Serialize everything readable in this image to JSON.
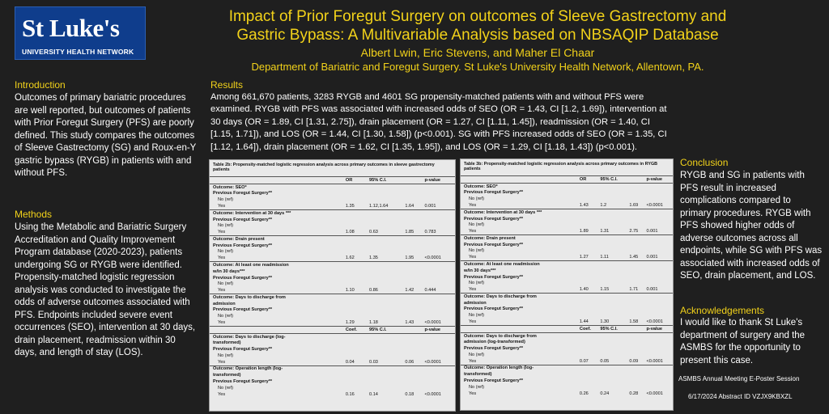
{
  "logo": {
    "main": "St Luke's",
    "sub": "UNIVERSITY HEALTH NETWORK"
  },
  "header": {
    "title_line1": "Impact of Prior Foregut Surgery on outcomes of Sleeve Gastrectomy and",
    "title_line2": "Gastric Bypass: A Multivariable Analysis based on NBSAQIP Database",
    "authors": "Albert Lwin, Eric Stevens, and Maher El Chaar",
    "department": "Department of Bariatric and Foregut Surgery. St Luke's University Health Network, Allentown, PA."
  },
  "introduction": {
    "heading": "Introduction",
    "text": "Outcomes of primary bariatric procedures are well reported, but outcomes of patients with Prior Foregut Surgery (PFS) are poorly defined. This study compares the outcomes of Sleeve Gastrectomy (SG) and Roux-en-Y gastric bypass (RYGB) in patients with and without PFS."
  },
  "methods": {
    "heading": "Methods",
    "text": "Using the Metabolic and Bariatric Surgery Accreditation and Quality Improvement Program database (2020-2023), patients undergoing SG or RYGB were identified. Propensity-matched logistic regression analysis was conducted to investigate the odds of adverse outcomes associated with PFS. Endpoints included severe event occurrences (SEO), intervention at 30 days, drain placement, readmission within 30 days, and length of stay (LOS)."
  },
  "results": {
    "heading": "Results",
    "text": "Among 661,670 patients, 3283 RYGB and 4601 SG propensity-matched patients with and without PFS were examined. RYGB with PFS was associated with increased odds of SEO (OR = 1.43, CI [1.2, 1.69]), intervention at 30 days (OR = 1.89, CI [1.31, 2.75]), drain placement (OR = 1.27, CI [1.11, 1.45]), readmission (OR = 1.40, CI [1.15, 1.71]), and LOS (OR = 1.44, CI [1.30, 1.58]) (p<0.001). SG with PFS increased odds of SEO (OR = 1.35, CI [1.12, 1.64]), drain placement (OR = 1.62, CI [1.35, 1.95]), and LOS (OR = 1.29, CI [1.18, 1.43]) (p<0.001)."
  },
  "table_sg": {
    "caption": "Table 2b: Propensity-matched logistic regression analysis across primary outcomes in sleeve gastrectomy patients",
    "headers": [
      "",
      "OR",
      "95% C.I.",
      "",
      "p-value"
    ],
    "rows": [
      {
        "label": "Outcome: SEO*",
        "type": "bold",
        "sep": false,
        "v": [
          "",
          "",
          "",
          ""
        ]
      },
      {
        "label": "Previous Foregut Surgery**",
        "type": "bold",
        "sep": false,
        "v": [
          "",
          "",
          "",
          ""
        ]
      },
      {
        "label": "No (ref)",
        "type": "ind",
        "sep": false,
        "v": [
          "",
          "",
          "",
          ""
        ]
      },
      {
        "label": "Yes",
        "type": "ind",
        "sep": false,
        "v": [
          "1.35",
          "1.12,1.64",
          "1.64",
          "0.001"
        ]
      },
      {
        "label": "Outcome: Intervention at 30 days ***",
        "type": "bold",
        "sep": true,
        "v": [
          "",
          "",
          "",
          ""
        ]
      },
      {
        "label": "Previous Foregut Surgery**",
        "type": "bold",
        "sep": false,
        "v": [
          "",
          "",
          "",
          ""
        ]
      },
      {
        "label": "No (ref)",
        "type": "ind",
        "sep": false,
        "v": [
          "",
          "",
          "",
          ""
        ]
      },
      {
        "label": "Yes",
        "type": "ind",
        "sep": false,
        "v": [
          "1.08",
          "0.63",
          "1.85",
          "0.783"
        ]
      },
      {
        "label": "Outcome: Drain present",
        "type": "bold",
        "sep": true,
        "v": [
          "",
          "",
          "",
          ""
        ]
      },
      {
        "label": "Previous Foregut Surgery**",
        "type": "bold",
        "sep": false,
        "v": [
          "",
          "",
          "",
          ""
        ]
      },
      {
        "label": "No (ref)",
        "type": "ind",
        "sep": false,
        "v": [
          "",
          "",
          "",
          ""
        ]
      },
      {
        "label": "Yes",
        "type": "ind",
        "sep": false,
        "v": [
          "1.62",
          "1.35",
          "1.95",
          "<0.0001"
        ]
      },
      {
        "label": "Outcome: At least one readmission",
        "type": "bold",
        "sep": true,
        "v": [
          "",
          "",
          "",
          ""
        ]
      },
      {
        "label": "w/in 30 days***",
        "type": "bold",
        "sep": false,
        "v": [
          "",
          "",
          "",
          ""
        ]
      },
      {
        "label": "Previous Foregut Surgery**",
        "type": "bold",
        "sep": false,
        "v": [
          "",
          "",
          "",
          ""
        ]
      },
      {
        "label": "No (ref)",
        "type": "ind",
        "sep": false,
        "v": [
          "",
          "",
          "",
          ""
        ]
      },
      {
        "label": "Yes",
        "type": "ind",
        "sep": false,
        "v": [
          "1.10",
          "0.86",
          "1.42",
          "0.444"
        ]
      },
      {
        "label": "Outcome: Days to discharge from",
        "type": "bold",
        "sep": true,
        "v": [
          "",
          "",
          "",
          ""
        ]
      },
      {
        "label": "admission",
        "type": "bold",
        "sep": false,
        "v": [
          "",
          "",
          "",
          ""
        ]
      },
      {
        "label": "Previous Foregut Surgery**",
        "type": "bold",
        "sep": false,
        "v": [
          "",
          "",
          "",
          ""
        ]
      },
      {
        "label": "No (ref)",
        "type": "ind",
        "sep": false,
        "v": [
          "",
          "",
          "",
          ""
        ]
      },
      {
        "label": "Yes",
        "type": "ind",
        "sep": false,
        "v": [
          "1.29",
          "1.18",
          "1.43",
          "<0.0001"
        ]
      },
      {
        "label": "",
        "type": "head",
        "sep": true,
        "v": [
          "Coef.",
          "95% C.I.",
          "",
          "p-value"
        ]
      },
      {
        "label": "Outcome: Days to discharge (log-",
        "type": "bold",
        "sep": true,
        "v": [
          "",
          "",
          "",
          ""
        ]
      },
      {
        "label": "transformed)",
        "type": "bold",
        "sep": false,
        "v": [
          "",
          "",
          "",
          ""
        ]
      },
      {
        "label": "Previous Foregut Surgery**",
        "type": "bold",
        "sep": false,
        "v": [
          "",
          "",
          "",
          ""
        ]
      },
      {
        "label": "No (ref)",
        "type": "ind",
        "sep": false,
        "v": [
          "",
          "",
          "",
          ""
        ]
      },
      {
        "label": "Yes",
        "type": "ind",
        "sep": false,
        "v": [
          "0.04",
          "0.03",
          "0.06",
          "<0.0001"
        ]
      },
      {
        "label": "Outcome: Operation length (log-",
        "type": "bold",
        "sep": true,
        "v": [
          "",
          "",
          "",
          ""
        ]
      },
      {
        "label": "transformed)",
        "type": "bold",
        "sep": false,
        "v": [
          "",
          "",
          "",
          ""
        ]
      },
      {
        "label": "Previous Foregut Surgery**",
        "type": "bold",
        "sep": false,
        "v": [
          "",
          "",
          "",
          ""
        ]
      },
      {
        "label": "No (ref)",
        "type": "ind",
        "sep": false,
        "v": [
          "",
          "",
          "",
          ""
        ]
      },
      {
        "label": "Yes",
        "type": "ind",
        "sep": false,
        "v": [
          "0.16",
          "0.14",
          "0.18",
          "<0.0001"
        ]
      }
    ]
  },
  "table_rygb": {
    "caption": "Table 3b: Propensity-matched logistic regression analysis across primary outcomes in RYGB patients",
    "headers": [
      "",
      "OR",
      "95% C.I.",
      "",
      "p-value"
    ],
    "rows": [
      {
        "label": "Outcome: SEO*",
        "type": "bold",
        "sep": false,
        "v": [
          "",
          "",
          "",
          ""
        ]
      },
      {
        "label": "Previous Foregut Surgery**",
        "type": "bold",
        "sep": false,
        "v": [
          "",
          "",
          "",
          ""
        ]
      },
      {
        "label": "No (ref)",
        "type": "ind",
        "sep": false,
        "v": [
          "",
          "",
          "",
          ""
        ]
      },
      {
        "label": "Yes",
        "type": "ind",
        "sep": false,
        "v": [
          "1.43",
          "1.2",
          "1.69",
          "<0.0001"
        ]
      },
      {
        "label": "Outcome: Intervention at 30 days ***",
        "type": "bold",
        "sep": true,
        "v": [
          "",
          "",
          "",
          ""
        ]
      },
      {
        "label": "Previous Foregut Surgery**",
        "type": "bold",
        "sep": false,
        "v": [
          "",
          "",
          "",
          ""
        ]
      },
      {
        "label": "No (ref)",
        "type": "ind",
        "sep": false,
        "v": [
          "",
          "",
          "",
          ""
        ]
      },
      {
        "label": "Yes",
        "type": "ind",
        "sep": false,
        "v": [
          "1.89",
          "1.31",
          "2.75",
          "0.001"
        ]
      },
      {
        "label": "Outcome: Drain present",
        "type": "bold",
        "sep": true,
        "v": [
          "",
          "",
          "",
          ""
        ]
      },
      {
        "label": "Previous Foregut Surgery**",
        "type": "bold",
        "sep": false,
        "v": [
          "",
          "",
          "",
          ""
        ]
      },
      {
        "label": "No (ref)",
        "type": "ind",
        "sep": false,
        "v": [
          "",
          "",
          "",
          ""
        ]
      },
      {
        "label": "Yes",
        "type": "ind",
        "sep": false,
        "v": [
          "1.27",
          "1.11",
          "1.45",
          "0.001"
        ]
      },
      {
        "label": "Outcome: At least one readmission",
        "type": "bold",
        "sep": true,
        "v": [
          "",
          "",
          "",
          ""
        ]
      },
      {
        "label": "w/in 30 days***",
        "type": "bold",
        "sep": false,
        "v": [
          "",
          "",
          "",
          ""
        ]
      },
      {
        "label": "Previous Foregut Surgery**",
        "type": "bold",
        "sep": false,
        "v": [
          "",
          "",
          "",
          ""
        ]
      },
      {
        "label": "No (ref)",
        "type": "ind",
        "sep": false,
        "v": [
          "",
          "",
          "",
          ""
        ]
      },
      {
        "label": "Yes",
        "type": "ind",
        "sep": false,
        "v": [
          "1.40",
          "1.15",
          "1.71",
          "0.001"
        ]
      },
      {
        "label": "Outcome: Days to discharge from",
        "type": "bold",
        "sep": true,
        "v": [
          "",
          "",
          "",
          ""
        ]
      },
      {
        "label": "admission",
        "type": "bold",
        "sep": false,
        "v": [
          "",
          "",
          "",
          ""
        ]
      },
      {
        "label": "Previous Foregut Surgery**",
        "type": "bold",
        "sep": false,
        "v": [
          "",
          "",
          "",
          ""
        ]
      },
      {
        "label": "No (ref)",
        "type": "ind",
        "sep": false,
        "v": [
          "",
          "",
          "",
          ""
        ]
      },
      {
        "label": "Yes",
        "type": "ind",
        "sep": false,
        "v": [
          "1.44",
          "1.30",
          "1.58",
          "<0.0001"
        ]
      },
      {
        "label": "",
        "type": "head",
        "sep": true,
        "v": [
          "Coef.",
          "95% C.I.",
          "",
          "p-value"
        ]
      },
      {
        "label": "Outcome: Days to discharge from",
        "type": "bold",
        "sep": true,
        "v": [
          "",
          "",
          "",
          ""
        ]
      },
      {
        "label": "admission (log-transformed)",
        "type": "bold",
        "sep": false,
        "v": [
          "",
          "",
          "",
          ""
        ]
      },
      {
        "label": "Previous Foregut Surgery**",
        "type": "bold",
        "sep": false,
        "v": [
          "",
          "",
          "",
          ""
        ]
      },
      {
        "label": "No (ref)",
        "type": "ind",
        "sep": false,
        "v": [
          "",
          "",
          "",
          ""
        ]
      },
      {
        "label": "Yes",
        "type": "ind",
        "sep": false,
        "v": [
          "0.07",
          "0.05",
          "0.09",
          "<0.0001"
        ]
      },
      {
        "label": "Outcome: Operation length (log-",
        "type": "bold",
        "sep": true,
        "v": [
          "",
          "",
          "",
          ""
        ]
      },
      {
        "label": "transformed)",
        "type": "bold",
        "sep": false,
        "v": [
          "",
          "",
          "",
          ""
        ]
      },
      {
        "label": "Previous Foregut Surgery**",
        "type": "bold",
        "sep": false,
        "v": [
          "",
          "",
          "",
          ""
        ]
      },
      {
        "label": "No (ref)",
        "type": "ind",
        "sep": false,
        "v": [
          "",
          "",
          "",
          ""
        ]
      },
      {
        "label": "Yes",
        "type": "ind",
        "sep": false,
        "v": [
          "0.26",
          "0.24",
          "0.28",
          "<0.0001"
        ]
      }
    ]
  },
  "conclusion": {
    "heading": "Conclusion",
    "text": "RYGB and SG in patients with PFS result in increased complications compared to primary procedures. RYGB with PFS showed higher odds of adverse outcomes across all endpoints, while SG with PFS was associated with increased odds of SEO, drain placement, and LOS."
  },
  "acknowledgements": {
    "heading": "Acknowledgements",
    "text": "I would like to thank St Luke's department of surgery and the ASMBS for the opportunity to present this case."
  },
  "footer": {
    "meeting": "ASMBS Annual Meeting E-Poster Session",
    "date_id": "6/17/2024  Abstract ID VZJX9KBXZL"
  },
  "colors": {
    "background": "#1f1f1f",
    "heading": "#f2d21a",
    "logo_bg": "#0f3d8c"
  }
}
